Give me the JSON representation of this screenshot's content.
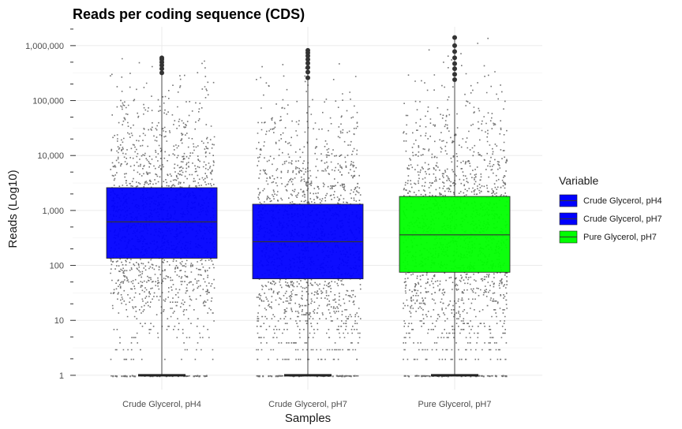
{
  "chart_data": {
    "type": "box",
    "title": "Reads per coding sequence (CDS)",
    "xlabel": "Samples",
    "ylabel": "Reads (Log10)",
    "y_scale": "log10",
    "ylim": [
      0.55,
      2200000
    ],
    "y_ticks": [
      1,
      10,
      100,
      1000,
      10000,
      100000,
      1000000
    ],
    "y_tick_labels": [
      "1",
      "10",
      "100",
      "1,000",
      "10,000",
      "100,000",
      "1,000,000"
    ],
    "grid": true,
    "legend_position": "right",
    "legend_title": "Variable",
    "categories": [
      "Crude Glycerol, pH4",
      "Crude Glycerol, pH7",
      "Pure Glycerol, pH7"
    ],
    "series": [
      {
        "name": "Crude Glycerol, pH4",
        "color": "#0000ff",
        "min": 1,
        "q1": 135,
        "median": 620,
        "q3": 2600,
        "max": 600000,
        "outliers_high": [
          320000,
          380000,
          440000,
          500000,
          560000,
          600000
        ]
      },
      {
        "name": "Crude Glycerol, pH7",
        "color": "#0000ff",
        "min": 1,
        "q1": 57,
        "median": 270,
        "q3": 1300,
        "max": 820000,
        "outliers_high": [
          260000,
          330000,
          400000,
          480000,
          560000,
          650000,
          740000,
          820000
        ]
      },
      {
        "name": "Pure Glycerol, pH7",
        "color": "#00ff00",
        "min": 1,
        "q1": 75,
        "median": 360,
        "q3": 1800,
        "max": 1400000,
        "outliers_high": [
          240000,
          300000,
          380000,
          470000,
          600000,
          780000,
          1000000,
          1400000
        ]
      }
    ]
  }
}
